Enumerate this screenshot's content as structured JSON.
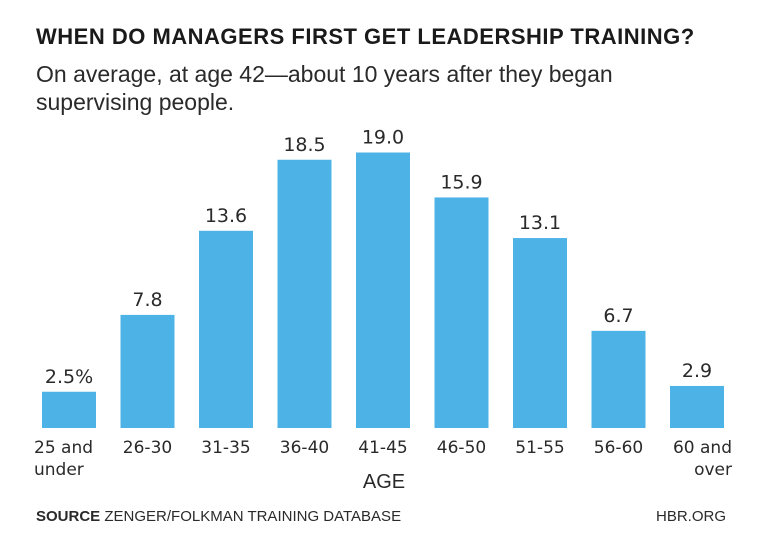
{
  "chart_data": {
    "type": "bar",
    "title": "WHEN DO MANAGERS FIRST GET LEADERSHIP TRAINING?",
    "subtitle": "On average, at age 42—about 10 years after they began supervising people.",
    "xlabel": "AGE",
    "ylabel": "",
    "categories": [
      [
        "25 and",
        "under"
      ],
      [
        "26-30"
      ],
      [
        "31-35"
      ],
      [
        "36-40"
      ],
      [
        "41-45"
      ],
      [
        "46-50"
      ],
      [
        "51-55"
      ],
      [
        "56-60"
      ],
      [
        "60 and",
        "over"
      ]
    ],
    "values": [
      2.5,
      7.8,
      13.6,
      18.5,
      19.0,
      15.9,
      13.1,
      6.7,
      2.9
    ],
    "value_labels": [
      "2.5%",
      "7.8",
      "13.6",
      "18.5",
      "19.0",
      "15.9",
      "13.1",
      "6.7",
      "2.9"
    ],
    "ylim": [
      0,
      20
    ],
    "grid": false,
    "bar_color": "#4db3e6"
  },
  "footer": {
    "source_label": "SOURCE",
    "source_text": "ZENGER/FOLKMAN TRAINING DATABASE",
    "brand": "HBR.ORG"
  }
}
